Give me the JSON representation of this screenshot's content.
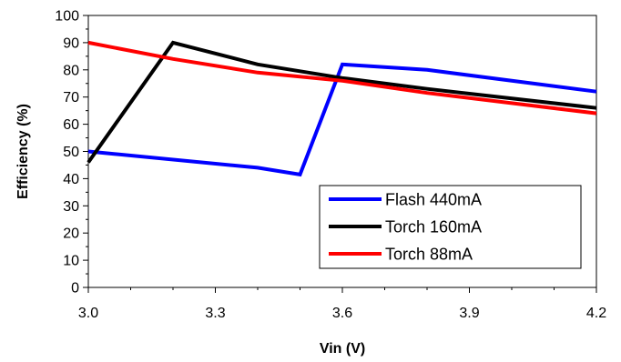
{
  "chart_data": {
    "type": "line",
    "title": "",
    "xlabel": "Vin (V)",
    "ylabel": "Efficiency (%)",
    "xlim": [
      3.0,
      4.2
    ],
    "ylim": [
      0,
      100
    ],
    "x_ticks": [
      "3.0",
      "3.3",
      "3.6",
      "3.9",
      "4.2"
    ],
    "x_tick_values": [
      3.0,
      3.3,
      3.6,
      3.9,
      4.2
    ],
    "y_ticks": [
      "0",
      "10",
      "20",
      "30",
      "40",
      "50",
      "60",
      "70",
      "80",
      "90",
      "100"
    ],
    "y_tick_values": [
      0,
      10,
      20,
      30,
      40,
      50,
      60,
      70,
      80,
      90,
      100
    ],
    "grid": false,
    "legend_position": "bottom-right",
    "series": [
      {
        "name": "Flash 440mA",
        "color": "#0000ff",
        "x": [
          3.0,
          3.4,
          3.5,
          3.6,
          3.8,
          4.2
        ],
        "y": [
          50,
          44,
          41.5,
          82,
          80,
          72
        ]
      },
      {
        "name": "Torch 160mA",
        "color": "#000000",
        "x": [
          3.0,
          3.2,
          3.4,
          3.6,
          3.8,
          4.2
        ],
        "y": [
          46,
          90,
          82,
          77,
          73,
          66
        ]
      },
      {
        "name": "Torch 88mA",
        "color": "#ff0000",
        "x": [
          3.0,
          3.2,
          3.4,
          3.6,
          3.8,
          4.2
        ],
        "y": [
          90,
          84,
          79,
          76,
          71.5,
          64
        ]
      }
    ]
  }
}
